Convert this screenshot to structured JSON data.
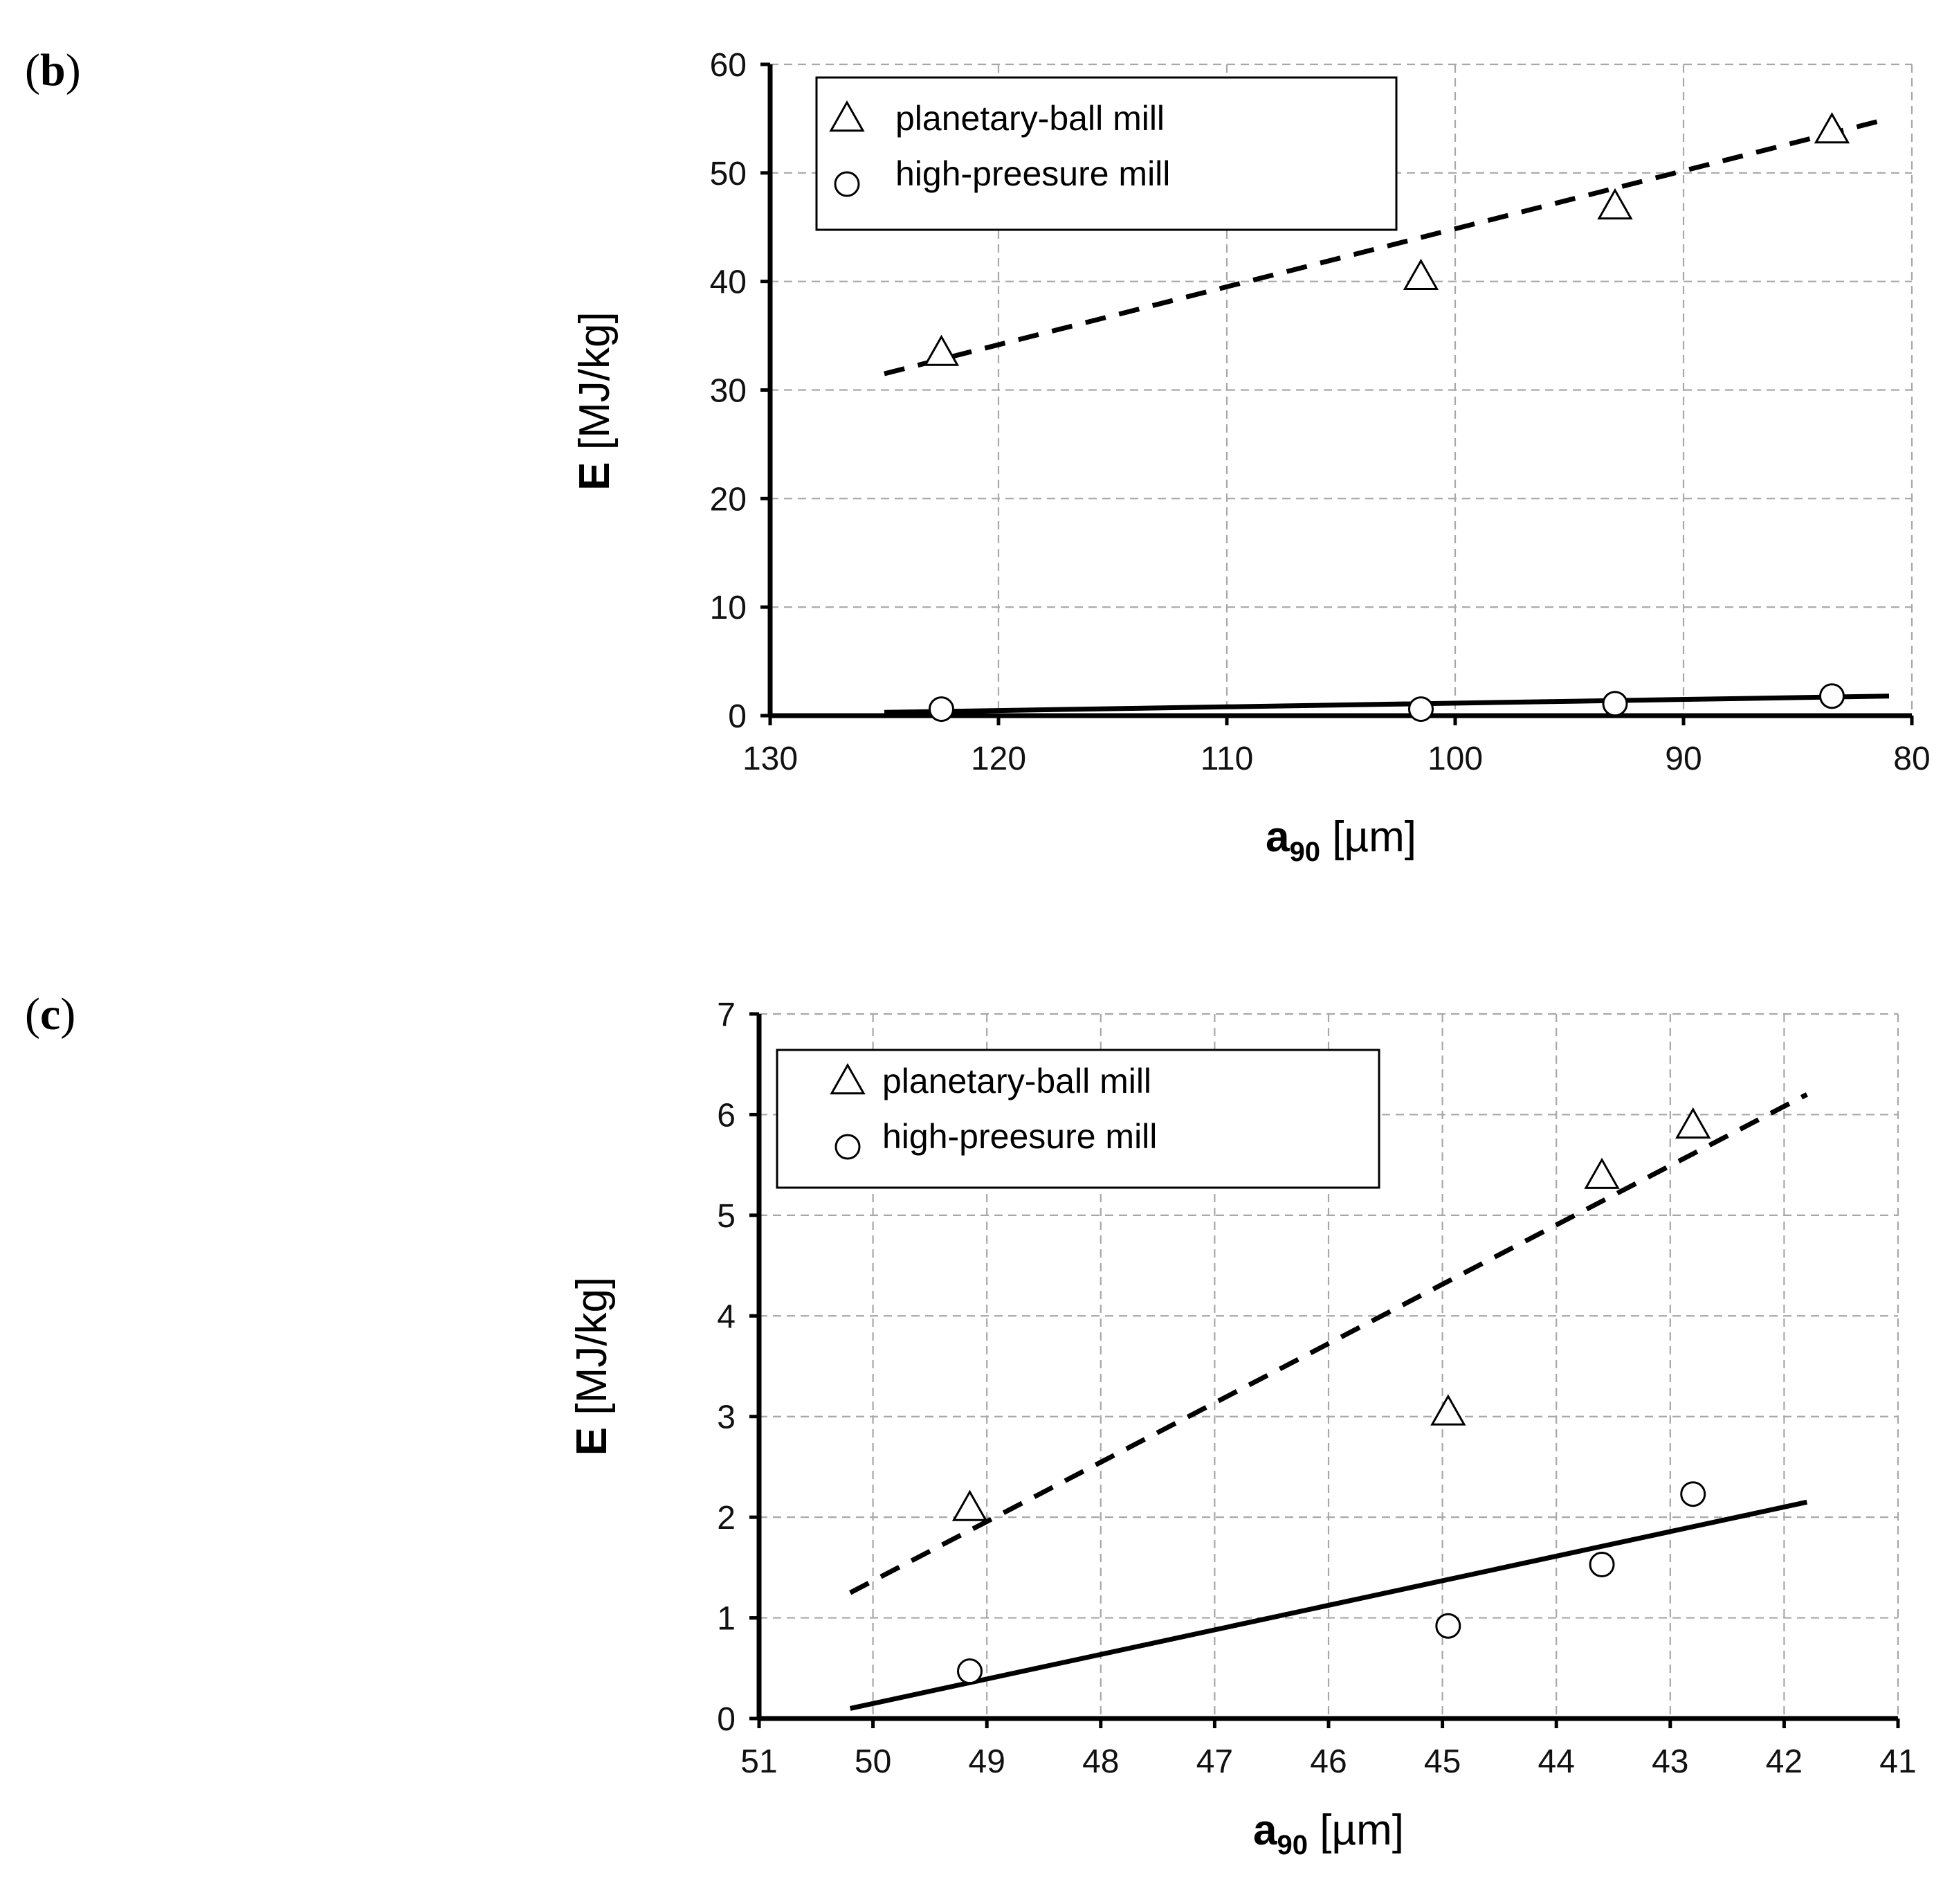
{
  "figure": {
    "panels": [
      {
        "label": "b"
      },
      {
        "label": "c"
      }
    ]
  },
  "chart_data": [
    {
      "panel": "b",
      "type": "scatter",
      "xlabel_main": "a",
      "xlabel_sub": "90",
      "xlabel_unit": " [µm]",
      "ylabel_main": "E",
      "ylabel_unit": " [MJ/kg]",
      "xlim": [
        130,
        80
      ],
      "ylim": [
        0,
        60
      ],
      "xticks": [
        130,
        120,
        110,
        100,
        90,
        80
      ],
      "yticks": [
        0,
        10,
        20,
        30,
        40,
        50,
        60
      ],
      "grid": true,
      "legend_position": "top-left",
      "series": [
        {
          "name": "planetary-ball mill",
          "marker": "triangle",
          "x": [
            122.5,
            101.5,
            93.0,
            83.5
          ],
          "y": [
            33.5,
            40.5,
            47.0,
            54.0
          ],
          "fit": {
            "style": "dashed",
            "x": [
              125.0,
              81.0
            ],
            "y": [
              31.5,
              55.0
            ]
          }
        },
        {
          "name": "high-preesure mill",
          "marker": "circle",
          "x": [
            122.5,
            101.5,
            93.0,
            83.5
          ],
          "y": [
            0.6,
            0.6,
            1.1,
            1.8
          ],
          "fit": {
            "style": "solid",
            "x": [
              125.0,
              81.0
            ],
            "y": [
              0.3,
              1.8
            ]
          }
        }
      ]
    },
    {
      "panel": "c",
      "type": "scatter",
      "xlabel_main": "a",
      "xlabel_sub": "90",
      "xlabel_unit": " [µm]",
      "ylabel_main": "E",
      "ylabel_unit": " [MJ/kg]",
      "xlim": [
        51,
        41
      ],
      "ylim": [
        0,
        7
      ],
      "xticks": [
        51,
        50,
        49,
        48,
        47,
        46,
        45,
        44,
        43,
        42,
        41
      ],
      "yticks": [
        0,
        1,
        2,
        3,
        4,
        5,
        6,
        7
      ],
      "grid": true,
      "legend_position": "top-left",
      "series": [
        {
          "name": "planetary-ball mill",
          "marker": "triangle",
          "x": [
            49.15,
            44.95,
            43.6,
            42.8
          ],
          "y": [
            2.1,
            3.05,
            5.4,
            5.9
          ],
          "fit": {
            "style": "dashed",
            "x": [
              50.2,
              41.8
            ],
            "y": [
              1.25,
              6.2
            ]
          }
        },
        {
          "name": "high-preesure mill",
          "marker": "circle",
          "x": [
            49.15,
            44.95,
            43.6,
            42.8
          ],
          "y": [
            0.47,
            0.92,
            1.53,
            2.23
          ],
          "fit": {
            "style": "solid",
            "x": [
              50.2,
              41.8
            ],
            "y": [
              0.1,
              2.15
            ]
          }
        }
      ]
    }
  ]
}
